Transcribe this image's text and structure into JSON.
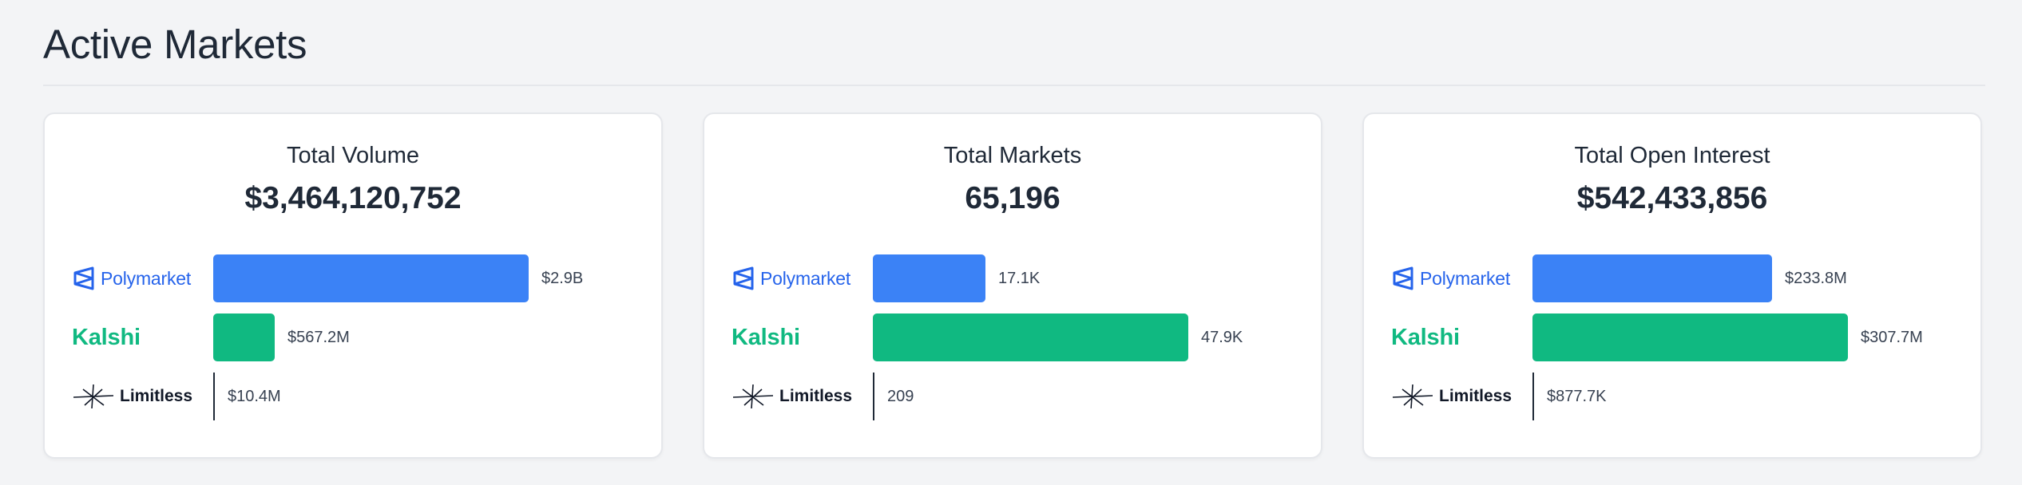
{
  "page": {
    "title": "Active Markets"
  },
  "platforms": {
    "polymarket": "Polymarket",
    "kalshi": "Kalshi",
    "limitless": "Limitless"
  },
  "colors": {
    "polymarket": "#3b82f6",
    "kalshi": "#10b981",
    "limitless": "#1f2937"
  },
  "cards": [
    {
      "title": "Total Volume",
      "value": "$3,464,120,752",
      "rows": [
        {
          "platform": "Polymarket",
          "label": "$2.9B",
          "share_of_max": 1.0
        },
        {
          "platform": "Kalshi",
          "label": "$567.2M",
          "share_of_max": 0.196
        },
        {
          "platform": "Limitless",
          "label": "$10.4M",
          "share_of_max": 0.0036
        }
      ]
    },
    {
      "title": "Total Markets",
      "value": "65,196",
      "rows": [
        {
          "platform": "Polymarket",
          "label": "17.1K",
          "share_of_max": 0.357
        },
        {
          "platform": "Kalshi",
          "label": "47.9K",
          "share_of_max": 1.0
        },
        {
          "platform": "Limitless",
          "label": "209",
          "share_of_max": 0.0044
        }
      ]
    },
    {
      "title": "Total Open Interest",
      "value": "$542,433,856",
      "rows": [
        {
          "platform": "Polymarket",
          "label": "$233.8M",
          "share_of_max": 0.76
        },
        {
          "platform": "Kalshi",
          "label": "$307.7M",
          "share_of_max": 1.0
        },
        {
          "platform": "Limitless",
          "label": "$877.7K",
          "share_of_max": 0.0029
        }
      ]
    }
  ]
}
